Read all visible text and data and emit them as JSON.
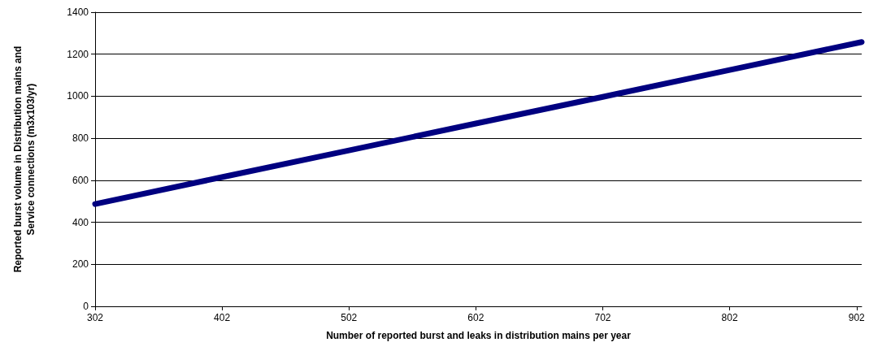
{
  "chart_data": {
    "type": "line",
    "xlabel": "Number of reported burst and leaks in distribution mains per year",
    "ylabel": "Reported burst volume in Distribution mains and Service connections (m3x103/yr)",
    "x": [
      302,
      402,
      502,
      602,
      702,
      802,
      906
    ],
    "series": [
      {
        "color": "#000080",
        "values": [
          487,
          615,
          742,
          870,
          997,
          1125,
          1258
        ]
      }
    ],
    "xlim": [
      302,
      906
    ],
    "xticks": [
      302,
      402,
      502,
      602,
      702,
      802,
      902
    ],
    "ylim": [
      0,
      1400
    ],
    "yticks": [
      0,
      200,
      400,
      600,
      800,
      1000,
      1200,
      1400
    ],
    "grid": "y",
    "marker": "none",
    "line_style": "solid"
  }
}
